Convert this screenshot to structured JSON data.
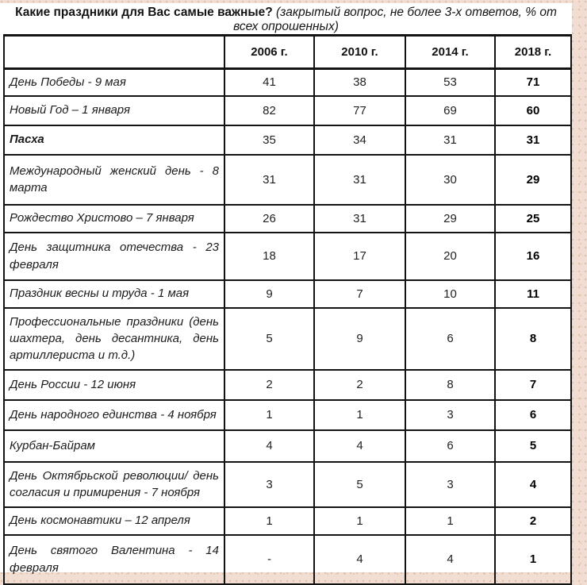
{
  "title": {
    "question": "Какие праздники для Вас самые важные?",
    "note": "(закрытый вопрос, не более 3-х ответов, % от всех опрошенных)"
  },
  "table": {
    "columns": [
      "2006 г.",
      "2010 г.",
      "2014 г.",
      "2018 г."
    ],
    "rows": [
      {
        "label": "День Победы - 9 мая",
        "bold": false,
        "values": [
          "41",
          "38",
          "53",
          "71"
        ]
      },
      {
        "label": "Новый Год – 1 января",
        "bold": false,
        "values": [
          "82",
          "77",
          "69",
          "60"
        ]
      },
      {
        "label": "Пасха",
        "bold": true,
        "values": [
          "35",
          "34",
          "31",
          "31"
        ]
      },
      {
        "label": "Международный женский день - 8 марта",
        "bold": false,
        "values": [
          "31",
          "31",
          "30",
          "29"
        ]
      },
      {
        "label": "Рождество Христово – 7 января",
        "bold": false,
        "values": [
          "26",
          "31",
          "29",
          "25"
        ]
      },
      {
        "label": "День защитника отечества - 23 февраля",
        "bold": false,
        "values": [
          "18",
          "17",
          "20",
          "16"
        ]
      },
      {
        "label": "Праздник весны и труда - 1 мая",
        "bold": false,
        "values": [
          "9",
          "7",
          "10",
          "11"
        ]
      },
      {
        "label": "Профессиональные праздники (день шахтера, день десантника, день артиллериста и т.д.)",
        "bold": false,
        "values": [
          "5",
          "9",
          "6",
          "8"
        ]
      },
      {
        "label": "День России - 12 июня",
        "bold": false,
        "values": [
          "2",
          "2",
          "8",
          "7"
        ]
      },
      {
        "label": "День народного единства - 4 ноября",
        "bold": false,
        "values": [
          "1",
          "1",
          "3",
          "6"
        ]
      },
      {
        "label": "Курбан-Байрам",
        "bold": false,
        "values": [
          "4",
          "4",
          "6",
          "5"
        ]
      },
      {
        "label": "День Октябрьской революции/ день согласия и примирения - 7 ноября",
        "bold": false,
        "values": [
          "3",
          "5",
          "3",
          "4"
        ]
      },
      {
        "label": "День космонавтики – 12 апреля",
        "bold": false,
        "values": [
          "1",
          "1",
          "1",
          "2"
        ]
      },
      {
        "label": "День святого Валентина - 14 февраля",
        "bold": false,
        "values": [
          "-",
          "4",
          "4",
          "1"
        ]
      }
    ]
  },
  "colors": {
    "page_texture": "#f1ddd1",
    "sheet": "#ffffff",
    "border": "#131313",
    "text": "#1a1a1a"
  }
}
